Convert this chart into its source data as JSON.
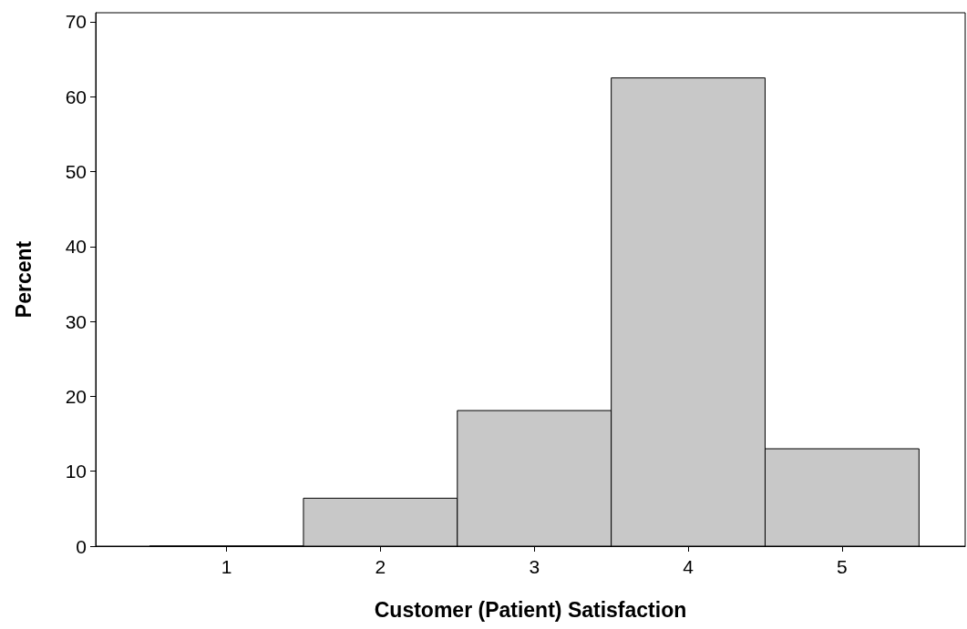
{
  "chart_data": {
    "type": "histogram",
    "xlabel": "Customer (Patient) Satisfaction",
    "ylabel": "Percent",
    "bins": [
      0.5,
      1.5,
      2.5,
      3.5,
      4.5,
      5.5
    ],
    "values": [
      0,
      6.4,
      18.1,
      62.5,
      13.0
    ],
    "color": "#c8c8c8",
    "xlim": [
      0.15,
      5.8
    ],
    "xticks": [
      1,
      2,
      3,
      4,
      5
    ],
    "ylim": [
      0,
      71.2
    ],
    "yticks": [
      0,
      10,
      20,
      30,
      40,
      50,
      60,
      70
    ],
    "grid": false
  }
}
